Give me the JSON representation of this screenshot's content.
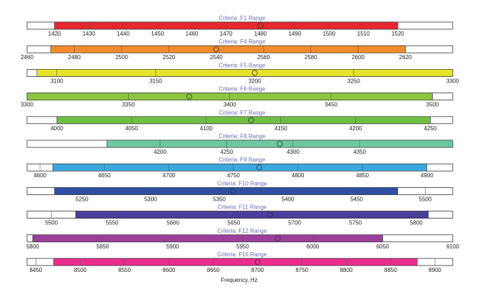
{
  "chart_data": {
    "type": "range-bar",
    "xlabel": "Frequency, Hz",
    "rows": [
      {
        "label": "Criteria: F1 Range",
        "axis_min": 1412,
        "axis_max": 1536,
        "range": [
          1420,
          1520
        ],
        "marker": 1480,
        "tick_start": 1420,
        "tick_step": 10,
        "tick_end": 1520,
        "color": "#e8262d"
      },
      {
        "label": "Criteria: F4 Range",
        "axis_min": 2460,
        "axis_max": 2640,
        "range": [
          2470,
          2620
        ],
        "marker": 2540,
        "tick_start": 2460,
        "tick_step": 20,
        "tick_end": 2620,
        "color": "#f28c2b"
      },
      {
        "label": "Criteria: F5 Range",
        "axis_min": 3085,
        "axis_max": 3300,
        "range": [
          3090,
          3300
        ],
        "marker": 3200,
        "tick_start": 3100,
        "tick_step": 50,
        "tick_end": 3300,
        "color": "#e6e32a"
      },
      {
        "label": "Criteria: F6 Range",
        "axis_min": 3300,
        "axis_max": 3510,
        "range": [
          3300,
          3500
        ],
        "marker": 3380,
        "tick_start": 3300,
        "tick_step": 50,
        "tick_end": 3500,
        "color": "#8cc63f"
      },
      {
        "label": "Criteria: F7 Range",
        "axis_min": 3980,
        "axis_max": 4265,
        "range": [
          4000,
          4250
        ],
        "marker": 4130,
        "tick_start": 4000,
        "tick_step": 50,
        "tick_end": 4250,
        "color": "#6fbf44"
      },
      {
        "label": "Criteria: F8 Range",
        "axis_min": 4100,
        "axis_max": 4420,
        "range": [
          4160,
          4420
        ],
        "marker": 4290,
        "tick_start": 4200,
        "tick_step": 50,
        "tick_end": 4350,
        "color": "#6cc9a1"
      },
      {
        "label": "Criteria: F9 Range",
        "axis_min": 4590,
        "axis_max": 4920,
        "range": [
          4610,
          4900
        ],
        "marker": 4770,
        "tick_start": 4600,
        "tick_step": 50,
        "tick_end": 4900,
        "color": "#3aa8df"
      },
      {
        "label": "Criteria: F10 Range",
        "axis_min": 5210,
        "axis_max": 5520,
        "range": [
          5230,
          5480
        ],
        "marker": 5360,
        "tick_start": 5250,
        "tick_step": 50,
        "tick_end": 5500,
        "color": "#2e4fa3"
      },
      {
        "label": "Criteria: F11 Range",
        "axis_min": 5480,
        "axis_max": 5830,
        "range": [
          5520,
          5810
        ],
        "marker": 5680,
        "tick_start": 5500,
        "tick_step": 50,
        "tick_end": 5800,
        "color": "#4a3f9c"
      },
      {
        "label": "Criteria: F12 Range",
        "axis_min": 5796,
        "axis_max": 6100,
        "range": [
          5800,
          6050
        ],
        "marker": 5975,
        "tick_start": 5800,
        "tick_step": 50,
        "tick_end": 6100,
        "color": "#9c3f9c"
      },
      {
        "label": "Criteria: F16 Range",
        "axis_min": 8440,
        "axis_max": 8920,
        "range": [
          8470,
          8880
        ],
        "marker": 8700,
        "tick_start": 8450,
        "tick_step": 50,
        "tick_end": 8900,
        "color": "#ec2d8c"
      }
    ]
  }
}
